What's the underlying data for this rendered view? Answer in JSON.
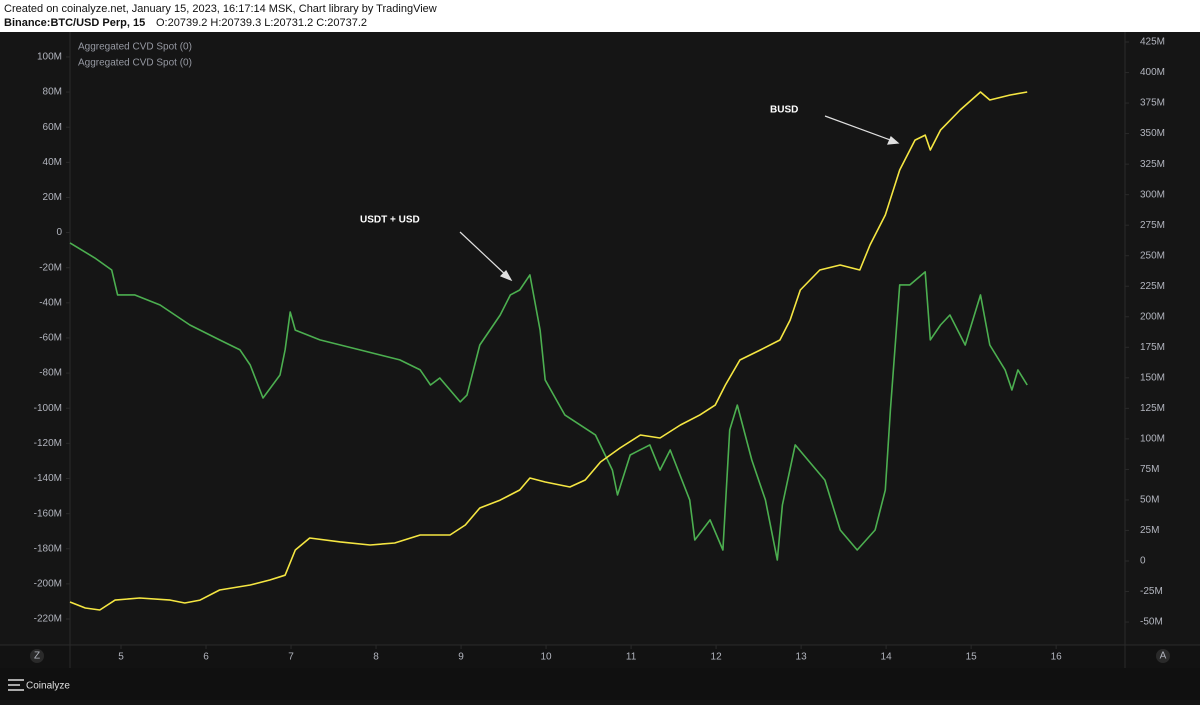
{
  "header": {
    "created": "Created on coinalyze.net, January 15, 2023, 16:17:14 MSK, Chart library by TradingView",
    "symbol": "Binance:BTC/USD Perp, 15",
    "ohlc": "O:20739.2 H:20739.3 L:20731.2 C:20737.2"
  },
  "footer": {
    "brand": "Coinalyze",
    "left_button": "Z",
    "right_button": "A"
  },
  "chart_data": {
    "type": "line",
    "annotations": [
      {
        "text": "USDT + USD"
      },
      {
        "text": "BUSD"
      }
    ],
    "xlim": [
      4.4,
      16.81
    ],
    "xticks": [
      5,
      6,
      7,
      8,
      9,
      10,
      11,
      12,
      13,
      14,
      15,
      16
    ],
    "ylim": [
      -234.8,
      114.2
    ],
    "yticks": [
      {
        "value": 100,
        "label": "100M"
      },
      {
        "value": 80,
        "label": "80M"
      },
      {
        "value": 60,
        "label": "60M"
      },
      {
        "value": 40,
        "label": "40M"
      },
      {
        "value": 20,
        "label": "20M"
      },
      0,
      {
        "value": -20,
        "label": "-20M"
      },
      {
        "value": -40,
        "label": "-40M"
      },
      {
        "value": -60,
        "label": "-60M"
      },
      {
        "value": -80,
        "label": "-80M"
      },
      {
        "value": -100,
        "label": "-100M"
      },
      {
        "value": -120,
        "label": "-120M"
      },
      {
        "value": -140,
        "label": "-140M"
      },
      {
        "value": -160,
        "label": "-160M"
      },
      {
        "value": -180,
        "label": "-180M"
      },
      {
        "value": -200,
        "label": "-200M"
      },
      {
        "value": -220,
        "label": "-220M"
      }
    ],
    "y2lim": [
      -68.8,
      433.2
    ],
    "y2ticks": [
      {
        "value": 425,
        "label": "425M"
      },
      {
        "value": 400,
        "label": "400M"
      },
      {
        "value": 375,
        "label": "375M"
      },
      {
        "value": 350,
        "label": "350M"
      },
      {
        "value": 325,
        "label": "325M"
      },
      {
        "value": 300,
        "label": "300M"
      },
      {
        "value": 275,
        "label": "275M"
      },
      {
        "value": 250,
        "label": "250M"
      },
      {
        "value": 225,
        "label": "225M"
      },
      {
        "value": 200,
        "label": "200M"
      },
      {
        "value": 175,
        "label": "175M"
      },
      {
        "value": 150,
        "label": "150M"
      },
      {
        "value": 125,
        "label": "125M"
      },
      {
        "value": 100,
        "label": "100M"
      },
      {
        "value": 75,
        "label": "75M"
      },
      {
        "value": 50,
        "label": "50M"
      },
      {
        "value": 25,
        "label": "25M"
      },
      0,
      {
        "value": -25,
        "label": "-25M"
      },
      {
        "value": -50,
        "label": "-50M"
      }
    ],
    "grid": false,
    "series": [
      {
        "name": "Aggregated CVD Spot (0)",
        "color": "#4caf50",
        "axis": "y",
        "x": [
          4.4,
          4.69,
          4.89,
          4.96,
          5.16,
          5.46,
          5.81,
          6.16,
          6.4,
          6.52,
          6.67,
          6.87,
          6.93,
          6.99,
          7.05,
          7.34,
          7.81,
          8.28,
          8.52,
          8.64,
          8.75,
          8.99,
          9.07,
          9.22,
          9.46,
          9.58,
          9.69,
          9.81,
          9.93,
          9.99,
          10.22,
          10.58,
          10.78,
          10.84,
          10.99,
          11.22,
          11.34,
          11.46,
          11.69,
          11.75,
          11.93,
          12.08,
          12.16,
          12.25,
          12.42,
          12.58,
          12.72,
          12.78,
          12.93,
          13.08,
          13.28,
          13.46,
          13.66,
          13.87,
          13.99,
          14.05,
          14.16,
          14.28,
          14.46,
          14.52,
          14.64,
          14.75,
          14.93,
          15.11,
          15.22,
          15.4,
          15.48,
          15.55,
          15.66
        ],
        "values": [
          -5.9,
          -14.4,
          -21.3,
          -35.5,
          -35.5,
          -41.2,
          -52.6,
          -61.1,
          -66.8,
          -75.4,
          -94.2,
          -81.1,
          -66.8,
          -45.2,
          -55.5,
          -61.1,
          -66.8,
          -72.5,
          -78.2,
          -86.8,
          -82.8,
          -96.4,
          -92.5,
          -64.0,
          -46.9,
          -35.5,
          -32.7,
          -24.1,
          -55.5,
          -83.9,
          -103.8,
          -115.2,
          -135.2,
          -149.4,
          -126.6,
          -120.9,
          -135.2,
          -123.8,
          -152.2,
          -175.0,
          -163.6,
          -180.7,
          -112.4,
          -98.2,
          -129.5,
          -152.2,
          -186.4,
          -155.1,
          -120.9,
          -129.5,
          -140.9,
          -169.3,
          -180.7,
          -169.3,
          -146.6,
          -101.0,
          -29.8,
          -29.8,
          -22.4,
          -61.1,
          -52.6,
          -46.9,
          -64.0,
          -35.5,
          -64.0,
          -78.2,
          -89.6,
          -78.2,
          -86.8
        ]
      },
      {
        "name": "Aggregated CVD Spot (0)",
        "color": "#f5e642",
        "axis": "y2",
        "x": [
          4.4,
          4.58,
          4.75,
          4.93,
          5.22,
          5.58,
          5.75,
          5.93,
          6.16,
          6.52,
          6.75,
          6.93,
          7.05,
          7.22,
          7.58,
          7.93,
          8.22,
          8.52,
          8.87,
          9.05,
          9.22,
          9.46,
          9.69,
          9.81,
          9.99,
          10.28,
          10.46,
          10.64,
          10.87,
          11.11,
          11.34,
          11.58,
          11.81,
          11.99,
          12.11,
          12.28,
          12.52,
          12.75,
          12.87,
          12.99,
          13.22,
          13.46,
          13.69,
          13.81,
          13.99,
          14.16,
          14.34,
          14.46,
          14.52,
          14.64,
          14.87,
          15.11,
          15.22,
          15.46,
          15.66
        ],
        "values": [
          -33.6,
          -38.5,
          -40.1,
          -32.0,
          -30.3,
          -32.0,
          -34.4,
          -32.0,
          -23.8,
          -19.7,
          -15.6,
          -11.6,
          9.0,
          18.8,
          15.6,
          13.1,
          14.7,
          21.3,
          21.3,
          29.5,
          43.4,
          49.9,
          58.1,
          68.0,
          64.7,
          60.6,
          66.3,
          81.1,
          92.5,
          103.2,
          100.7,
          111.4,
          119.6,
          127.7,
          144.1,
          164.6,
          172.8,
          181.0,
          197.3,
          221.9,
          238.3,
          242.4,
          238.3,
          258.8,
          283.3,
          320.2,
          344.7,
          348.8,
          336.6,
          352.9,
          369.3,
          384.1,
          377.5,
          381.6,
          384.1
        ]
      }
    ]
  }
}
